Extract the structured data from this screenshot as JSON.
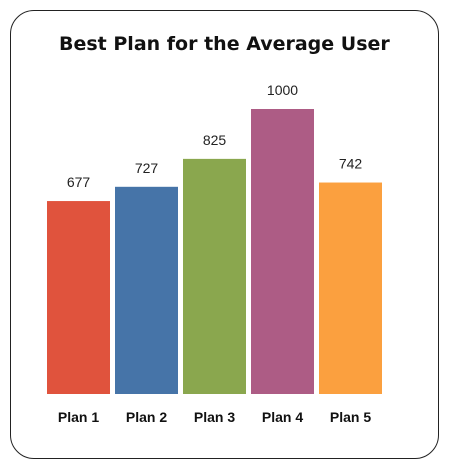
{
  "chart_data": {
    "type": "bar",
    "title": "Best Plan for the Average User",
    "categories": [
      "Plan 1",
      "Plan 2",
      "Plan 3",
      "Plan 4",
      "Plan 5"
    ],
    "values": [
      677,
      727,
      825,
      1000,
      742
    ],
    "value_labels": [
      "677",
      "727",
      "825",
      "1000",
      "742"
    ],
    "colors": [
      "#e0533d",
      "#4674a8",
      "#8aa74e",
      "#ad5c85",
      "#fba03f"
    ],
    "xlabel": "",
    "ylabel": "",
    "ylim": [
      0,
      1000
    ],
    "grid": false,
    "legend": "none"
  }
}
